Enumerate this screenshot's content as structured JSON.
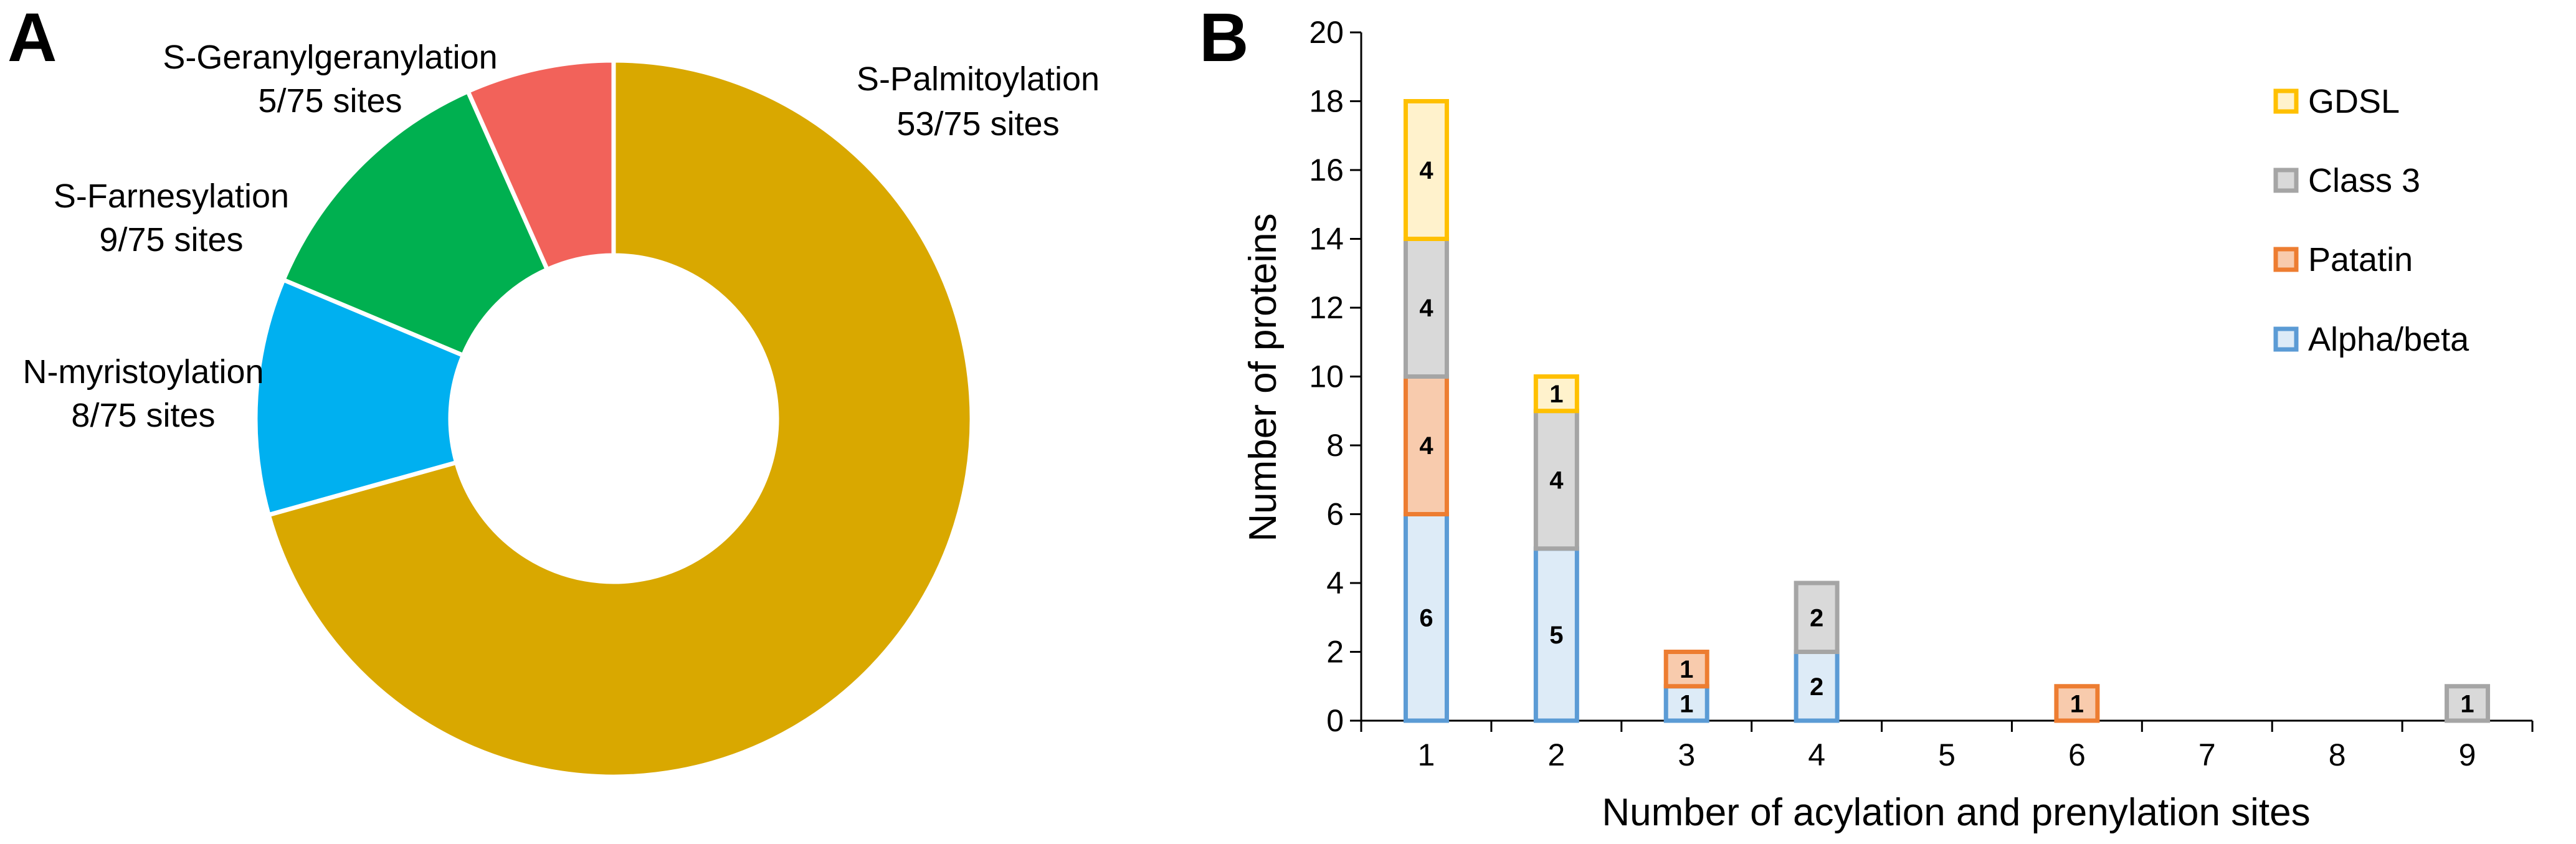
{
  "panels": {
    "a": "A",
    "b": "B"
  },
  "chart_data": [
    {
      "type": "pie",
      "style": "donut",
      "total_sites": 75,
      "slices": [
        {
          "key": "palm",
          "name": "S-Palmitoylation",
          "value": 53,
          "label": "53/75 sites",
          "color": "#D9A800"
        },
        {
          "key": "myr",
          "name": "N-myristoylation",
          "value": 8,
          "label": "8/75 sites",
          "color": "#00B0F0"
        },
        {
          "key": "farn",
          "name": "S-Farnesylation",
          "value": 9,
          "label": "9/75 sites",
          "color": "#00B050"
        },
        {
          "key": "ger",
          "name": "S-Geranylgeranylation",
          "value": 5,
          "label": "5/75 sites",
          "color": "#F2625A"
        }
      ]
    },
    {
      "type": "bar",
      "stacked": true,
      "xlabel": "Number of acylation and prenylation sites",
      "ylabel": "Number of proteins",
      "ylim": [
        0,
        20
      ],
      "yticks": [
        0,
        2,
        4,
        6,
        8,
        10,
        12,
        14,
        16,
        18,
        20
      ],
      "categories": [
        "1",
        "2",
        "3",
        "4",
        "5",
        "6",
        "7",
        "8",
        "9"
      ],
      "legend_position": "top-right",
      "series": [
        {
          "name": "Alpha/beta",
          "values": [
            6,
            5,
            1,
            2,
            0,
            0,
            0,
            0,
            0
          ],
          "stroke": "#5B9BD5",
          "fill": "#DDEBF7"
        },
        {
          "name": "Patatin",
          "values": [
            4,
            0,
            1,
            0,
            0,
            1,
            0,
            0,
            0
          ],
          "stroke": "#ED7D31",
          "fill": "#F8CBAD"
        },
        {
          "name": "Class 3",
          "values": [
            4,
            4,
            0,
            2,
            0,
            0,
            0,
            0,
            1
          ],
          "stroke": "#A5A5A5",
          "fill": "#D9D9D9"
        },
        {
          "name": "GDSL",
          "values": [
            4,
            1,
            0,
            0,
            0,
            0,
            0,
            0,
            0
          ],
          "stroke": "#FFC000",
          "fill": "#FFF2CC"
        }
      ],
      "legend_order": [
        "GDSL",
        "Class 3",
        "Patatin",
        "Alpha/beta"
      ]
    }
  ]
}
